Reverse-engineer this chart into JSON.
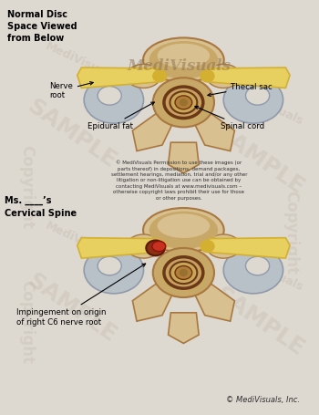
{
  "bg_color": "#ddd8d0",
  "title_copyright": "© MediVisuals, Inc.",
  "label_normal": "Normal Disc\nSpace Viewed\nfrom Below",
  "label_patient": "Ms. ____’s\nCervical Spine",
  "label_nerve_root": "Nerve\nroot",
  "label_thecal_sac": "Thecal sac",
  "label_epidural_fat": "Epidural fat",
  "label_spinal_cord": "Spinal cord",
  "label_impingement": "Impingement on origin\nof right C6 nerve root",
  "copyright_block": "© MediVisuals Permission to use these images (or\nparts thereof) in depositions, demand packages,\nsettlement hearings, mediation, trial and/or any other\nlitigation or non-litigation use can be obtained by\ncontacting MediVisuals at www.medivisuals.com –\notherwise copyright laws prohibit their use for those\nor other purposes.",
  "bone_light": "#d8c090",
  "bone_mid": "#c8a868",
  "bone_dark": "#a87840",
  "nerve_yellow": "#d4b030",
  "nerve_light": "#e8d060",
  "gray_area": "#b8c0c8",
  "gray_dark": "#909aaa",
  "thecal_ring": "#6a3818",
  "cord_outer": "#c8a060",
  "cord_inner": "#b08840",
  "cord_center": "#987030",
  "fat_yellow": "#c8a830",
  "red_imp": "#c83020",
  "dark_brown": "#703010",
  "fig_width": 3.5,
  "fig_height": 4.55,
  "dpi": 100
}
